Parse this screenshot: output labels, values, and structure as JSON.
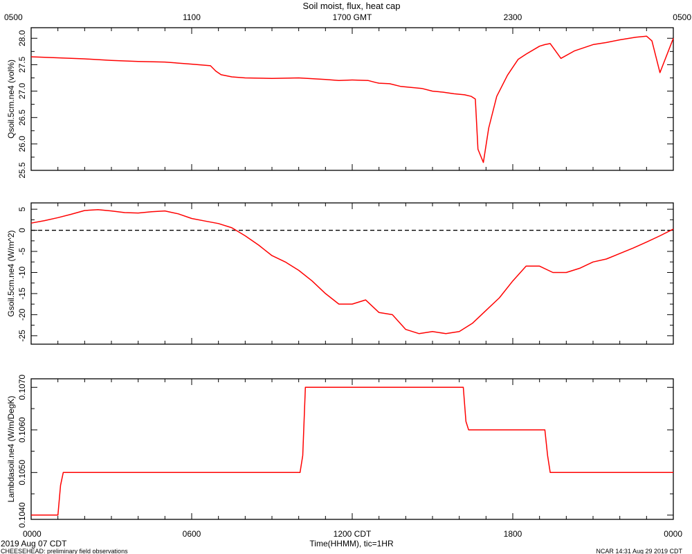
{
  "title": "Soil moist, flux, heat cap",
  "top_axis": {
    "ticks": [
      "0500",
      "1100",
      "1700 GMT",
      "2300",
      "0500"
    ]
  },
  "bottom_axis": {
    "ticks": [
      "0000",
      "0600",
      "1200 CDT",
      "1800",
      "0000"
    ],
    "label": "Time(HHMM), tic=1HR"
  },
  "footer": {
    "date": "2019 Aug 07 CDT",
    "project": "CHEESEHEAD: preliminary field observations",
    "stamp": "NCAR 14:31 Aug 29 2019 CDT"
  },
  "colors": {
    "series": "#ff0000",
    "axis": "#000000"
  },
  "chart_data": [
    {
      "type": "line",
      "ylabel": "Qsoil.5cm.ne4 (vol%)",
      "ylim": [
        25.5,
        28.2
      ],
      "yticks": [
        25.5,
        26.0,
        26.5,
        27.0,
        27.5,
        28.0
      ],
      "ytick_labels": [
        "25.5",
        "26.0",
        "26.5",
        "27.0",
        "27.5",
        "28.0"
      ],
      "zero_line": false,
      "series": [
        {
          "x": [
            0,
            1,
            2,
            3,
            4,
            5,
            6,
            6.7,
            6.9,
            7.1,
            7.5,
            8,
            9,
            10,
            11,
            11.5,
            12,
            12.6,
            12.9,
            13,
            13.4,
            13.8,
            14.2,
            14.6,
            15,
            15.4,
            15.8,
            16.2,
            16.45,
            16.6,
            16.7,
            16.9,
            17.1,
            17.4,
            17.8,
            18,
            18.2,
            18.5,
            19,
            19.2,
            19.4,
            19.8,
            20.3,
            21,
            21.5,
            22,
            22.6,
            22.8,
            23,
            23.2,
            23.5,
            24
          ],
          "y": [
            27.65,
            27.63,
            27.61,
            27.58,
            27.56,
            27.55,
            27.51,
            27.48,
            27.38,
            27.31,
            27.27,
            27.25,
            27.24,
            27.25,
            27.22,
            27.2,
            27.21,
            27.2,
            27.16,
            27.15,
            27.14,
            27.09,
            27.07,
            27.05,
            27.0,
            26.98,
            26.95,
            26.93,
            26.9,
            26.85,
            25.9,
            25.65,
            26.3,
            26.9,
            27.3,
            27.45,
            27.6,
            27.7,
            27.85,
            27.88,
            27.9,
            27.62,
            27.76,
            27.88,
            27.92,
            27.97,
            28.02,
            28.03,
            28.04,
            27.95,
            27.35,
            28.0
          ]
        }
      ]
    },
    {
      "type": "line",
      "ylabel": "Gsoil.5cm.ne4 (W/m^2)",
      "ylim": [
        -27,
        6.5
      ],
      "yticks": [
        -25,
        -20,
        -15,
        -10,
        -5,
        0,
        5
      ],
      "ytick_labels": [
        "-25",
        "-20",
        "-15",
        "-10",
        "-5",
        "0",
        "5"
      ],
      "zero_line": true,
      "series": [
        {
          "x": [
            0,
            0.5,
            1,
            1.5,
            2,
            2.5,
            3,
            3.5,
            4,
            4.5,
            5,
            5.5,
            6,
            6.5,
            7,
            7.5,
            8,
            8.5,
            9,
            9.5,
            10,
            10.5,
            11,
            11.5,
            12,
            12.5,
            13,
            13.5,
            14,
            14.5,
            15,
            15.5,
            16,
            16.5,
            17,
            17.5,
            18,
            18.5,
            19,
            19.5,
            20,
            20.5,
            21,
            21.5,
            22,
            22.5,
            23,
            23.5,
            24
          ],
          "y": [
            1.7,
            2.3,
            3.0,
            3.8,
            4.7,
            4.9,
            4.6,
            4.2,
            4.1,
            4.4,
            4.6,
            3.9,
            2.8,
            2.2,
            1.6,
            0.6,
            -1.3,
            -3.5,
            -6.0,
            -7.5,
            -9.5,
            -12.0,
            -15.0,
            -17.5,
            -17.5,
            -16.5,
            -19.5,
            -20.0,
            -23.5,
            -24.5,
            -24.0,
            -24.5,
            -24.0,
            -22.0,
            -19.0,
            -16.0,
            -12.0,
            -8.5,
            -8.5,
            -10.0,
            -10.0,
            -9.0,
            -7.5,
            -6.8,
            -5.5,
            -4.2,
            -2.8,
            -1.3,
            0.3
          ]
        }
      ]
    },
    {
      "type": "line",
      "ylabel": "Lambdasoil.ne4 (W/m/DegK)",
      "ylim": [
        0.1039,
        0.1072
      ],
      "yticks": [
        0.104,
        0.105,
        0.106,
        0.107
      ],
      "ytick_labels": [
        "0.1040",
        "0.1050",
        "0.1060",
        "0.1070"
      ],
      "zero_line": false,
      "series": [
        {
          "x": [
            0,
            1.0,
            1.1,
            1.2,
            10.05,
            10.15,
            10.25,
            16.15,
            16.25,
            16.35,
            19.2,
            19.3,
            19.4,
            24
          ],
          "y": [
            0.104,
            0.104,
            0.1047,
            0.105,
            0.105,
            0.1054,
            0.107,
            0.107,
            0.1062,
            0.106,
            0.106,
            0.1054,
            0.105,
            0.105
          ]
        }
      ]
    }
  ]
}
